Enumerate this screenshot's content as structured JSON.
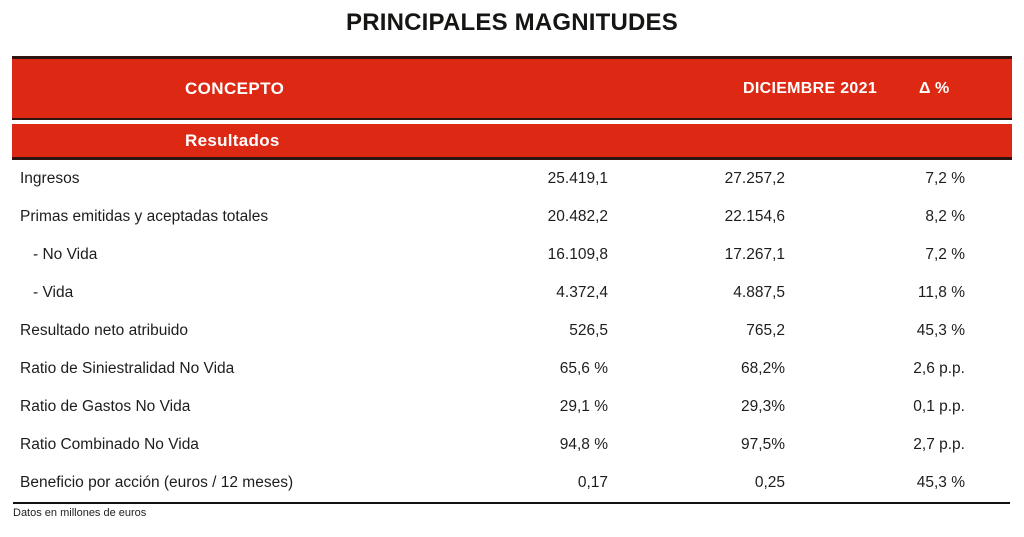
{
  "title": "PRINCIPALES MAGNITUDES",
  "colors": {
    "brand_red": "#DD2813",
    "dark_border": "#2E1410",
    "text": "#1D1D1B"
  },
  "table": {
    "header": {
      "concept": "CONCEPTO",
      "col_2021": "DICIEMBRE 2021",
      "delta": "Δ %"
    },
    "section": "Resultados",
    "rows": [
      {
        "label": "Ingresos",
        "indent": false,
        "v1": "25.419,1",
        "v2": "27.257,2",
        "delta": "7,2 %"
      },
      {
        "label": "Primas emitidas y aceptadas totales",
        "indent": false,
        "v1": "20.482,2",
        "v2": "22.154,6",
        "delta": "8,2 %"
      },
      {
        "label": "- No Vida",
        "indent": true,
        "v1": "16.109,8",
        "v2": "17.267,1",
        "delta": "7,2 %"
      },
      {
        "label": "- Vida",
        "indent": true,
        "v1": "4.372,4",
        "v2": "4.887,5",
        "delta": "11,8 %"
      },
      {
        "label": "Resultado neto atribuido",
        "indent": false,
        "v1": "526,5",
        "v2": "765,2",
        "delta": "45,3 %"
      },
      {
        "label": "Ratio de Siniestralidad No Vida",
        "indent": false,
        "v1": "65,6 %",
        "v2": "68,2%",
        "delta": "2,6 p.p."
      },
      {
        "label": "Ratio de Gastos No Vida",
        "indent": false,
        "v1": "29,1 %",
        "v2": "29,3%",
        "delta": "0,1 p.p."
      },
      {
        "label": "Ratio Combinado No Vida",
        "indent": false,
        "v1": "94,8 %",
        "v2": "97,5%",
        "delta": "2,7 p.p."
      },
      {
        "label": "Beneficio por acción (euros / 12 meses)",
        "indent": false,
        "v1": "0,17",
        "v2": "0,25",
        "delta": "45,3 %"
      }
    ],
    "footnote": "Datos en millones de euros"
  }
}
